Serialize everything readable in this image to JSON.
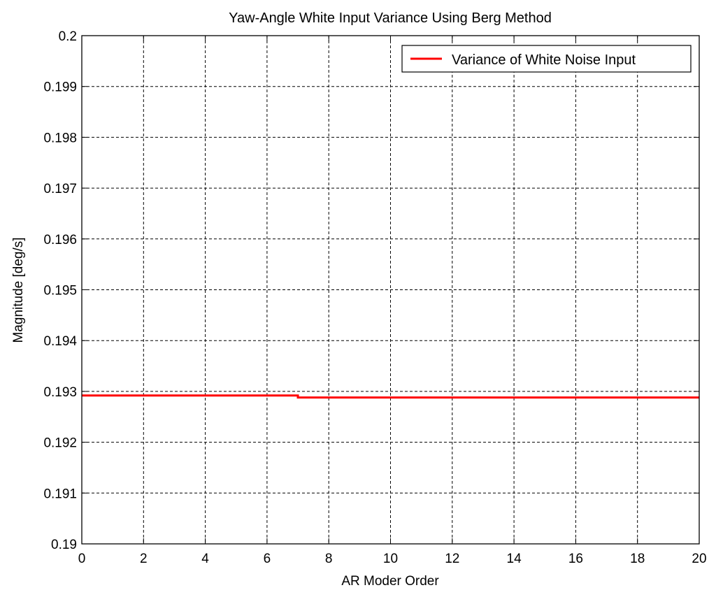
{
  "chart_data": {
    "type": "line",
    "title": "Yaw-Angle White Input Variance Using Berg Method",
    "xlabel": "AR Moder Order",
    "ylabel": "Magnitude [deg/s]",
    "xlim": [
      0,
      20
    ],
    "ylim": [
      0.19,
      0.2
    ],
    "x_ticks": [
      "0",
      "2",
      "4",
      "6",
      "8",
      "10",
      "12",
      "14",
      "16",
      "18",
      "20"
    ],
    "y_ticks": [
      "0.19",
      "0.191",
      "0.192",
      "0.193",
      "0.194",
      "0.195",
      "0.196",
      "0.197",
      "0.198",
      "0.199",
      "0.2"
    ],
    "grid": true,
    "legend_position": "top-right",
    "series": [
      {
        "name": "Variance of White Noise Input",
        "color": "#ff0000",
        "x": [
          0,
          7,
          7,
          20
        ],
        "y": [
          0.19292,
          0.19292,
          0.19288,
          0.19288
        ]
      }
    ]
  }
}
